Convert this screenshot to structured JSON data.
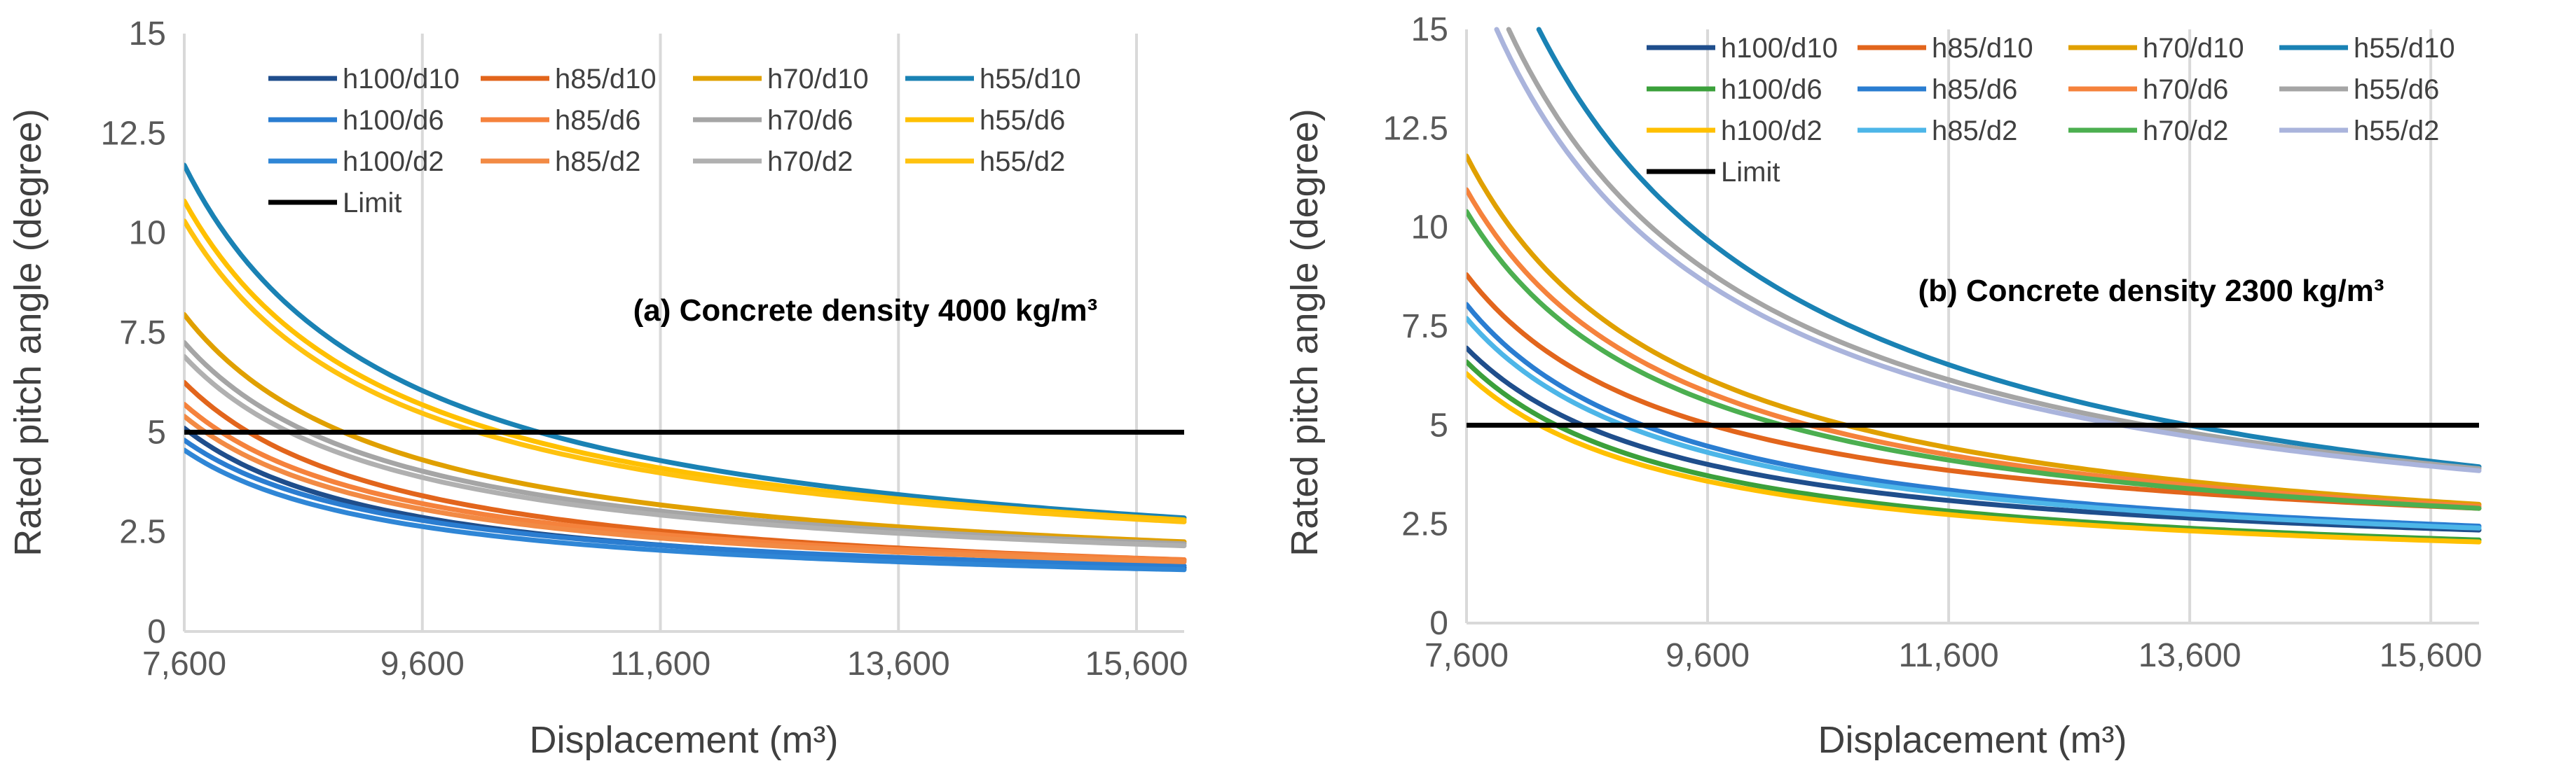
{
  "chart_data": [
    {
      "type": "line",
      "annotation": "(a) Concrete density  4000  kg/m³",
      "xlabel": "Displacement (m³)",
      "ylabel": "Rated pitch angle (degree)",
      "xlim": [
        7600,
        16000
      ],
      "ylim": [
        0,
        15
      ],
      "x_ticks": [
        7600,
        9600,
        11600,
        13600,
        15600
      ],
      "x_tick_labels": [
        "7,600",
        "9,600",
        "11,600",
        "13,600",
        "15,600"
      ],
      "y_ticks": [
        0,
        2.5,
        5,
        7.5,
        10,
        12.5,
        15
      ],
      "y_tick_labels": [
        "0",
        "2.5",
        "5",
        "7.5",
        "10",
        "12.5",
        "15"
      ],
      "grid": "vertical",
      "legend_position": "top-left",
      "limit": {
        "name": "Limit",
        "value": 5,
        "color": "#000000"
      },
      "x_range": [
        7600,
        16000
      ],
      "series": [
        {
          "name": "h100/d10",
          "color": "#1f4e8c",
          "x0": 7600,
          "y0": 5.1,
          "y_end": 1.6
        },
        {
          "name": "h85/d10",
          "color": "#e2651c",
          "x0": 7600,
          "y0": 6.25,
          "y_end": 1.8
        },
        {
          "name": "h70/d10",
          "color": "#e0a000",
          "x0": 7600,
          "y0": 7.95,
          "y_end": 2.25
        },
        {
          "name": "h55/d10",
          "color": "#1a82b4",
          "x0": 7600,
          "y0": 11.7,
          "y_end": 2.85
        },
        {
          "name": "h100/d6",
          "color": "#2a7dd1",
          "x0": 7600,
          "y0": 4.8,
          "y_end": 1.65
        },
        {
          "name": "h85/d6",
          "color": "#f5823c",
          "x0": 7600,
          "y0": 5.7,
          "y_end": 1.8
        },
        {
          "name": "h70/d6",
          "color": "#a5a5a5",
          "x0": 7600,
          "y0": 7.25,
          "y_end": 2.2
        },
        {
          "name": "h55/d6",
          "color": "#ffc000",
          "x0": 7600,
          "y0": 10.8,
          "y_end": 2.8
        },
        {
          "name": "h100/d2",
          "color": "#2f86d6",
          "x0": 7600,
          "y0": 4.55,
          "y_end": 1.55
        },
        {
          "name": "h85/d2",
          "color": "#f28a44",
          "x0": 7600,
          "y0": 5.4,
          "y_end": 1.75
        },
        {
          "name": "h70/d2",
          "color": "#b0b0b0",
          "x0": 7600,
          "y0": 6.9,
          "y_end": 2.15
        },
        {
          "name": "h55/d2",
          "color": "#ffc20e",
          "x0": 7600,
          "y0": 10.3,
          "y_end": 2.75
        }
      ]
    },
    {
      "type": "line",
      "annotation": "(b) Concrete density  2300  kg/m³",
      "xlabel": "Displacement (m³)",
      "ylabel": "Rated pitch angle (degree)",
      "xlim": [
        7600,
        16000
      ],
      "ylim": [
        0,
        15
      ],
      "x_ticks": [
        7600,
        9600,
        11600,
        13600,
        15600
      ],
      "x_tick_labels": [
        "7,600",
        "9,600",
        "11,600",
        "13,600",
        "15,600"
      ],
      "y_ticks": [
        0,
        2.5,
        5,
        7.5,
        10,
        12.5,
        15
      ],
      "y_tick_labels": [
        "0",
        "2.5",
        "5",
        "7.5",
        "10",
        "12.5",
        "15"
      ],
      "grid": "vertical",
      "legend_position": "top",
      "limit": {
        "name": "Limit",
        "value": 5,
        "color": "#000000"
      },
      "x_range": [
        7600,
        16000
      ],
      "series": [
        {
          "name": "h100/d10",
          "color": "#1f4e8c",
          "x0": 7600,
          "y0": 6.95,
          "y_end": 2.35
        },
        {
          "name": "h85/d10",
          "color": "#e2651c",
          "x0": 7600,
          "y0": 8.8,
          "y_end": 2.9
        },
        {
          "name": "h70/d10",
          "color": "#e0a000",
          "x0": 7600,
          "y0": 11.8,
          "y_end": 3.0
        },
        {
          "name": "h55/d10",
          "color": "#1a82b4",
          "x0": 8200,
          "y0": 15.0,
          "y_end": 3.95
        },
        {
          "name": "h100/d6",
          "color": "#3ba03b",
          "x0": 7600,
          "y0": 6.6,
          "y_end": 2.1
        },
        {
          "name": "h85/d6",
          "color": "#2a7dd1",
          "x0": 7600,
          "y0": 8.05,
          "y_end": 2.45
        },
        {
          "name": "h70/d6",
          "color": "#f5823c",
          "x0": 7600,
          "y0": 10.95,
          "y_end": 2.95
        },
        {
          "name": "h55/d6",
          "color": "#a5a5a5",
          "x0": 7950,
          "y0": 15.0,
          "y_end": 3.9
        },
        {
          "name": "h100/d2",
          "color": "#ffc000",
          "x0": 7600,
          "y0": 6.3,
          "y_end": 2.05
        },
        {
          "name": "h85/d2",
          "color": "#4db6e8",
          "x0": 7600,
          "y0": 7.7,
          "y_end": 2.4
        },
        {
          "name": "h70/d2",
          "color": "#4caf50",
          "x0": 7600,
          "y0": 10.4,
          "y_end": 2.9
        },
        {
          "name": "h55/d2",
          "color": "#aab4dc",
          "x0": 7850,
          "y0": 15.0,
          "y_end": 3.85
        }
      ]
    }
  ]
}
